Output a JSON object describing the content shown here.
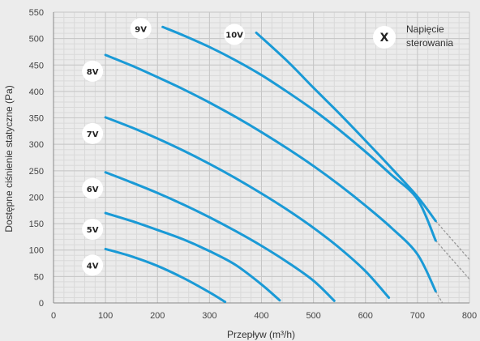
{
  "chart_data": {
    "type": "line",
    "xlabel": "Przepływ (m³/h)",
    "ylabel": "Dostępne ciśnienie statyczne (Pa)",
    "xlim": [
      0,
      800
    ],
    "ylim": [
      0,
      550
    ],
    "x_ticks": [
      "0",
      "100",
      "200",
      "300",
      "400",
      "500",
      "600",
      "700",
      "800"
    ],
    "y_ticks": [
      "0",
      "50",
      "100",
      "150",
      "200",
      "250",
      "300",
      "350",
      "400",
      "450",
      "500",
      "550"
    ],
    "grid": true,
    "legend": {
      "symbol": "X",
      "text_line1": "Napięcie",
      "text_line2": "sterowania",
      "placement": "top-right"
    },
    "series_color": "#1a9ad6",
    "extension_color": "#999999",
    "series": [
      {
        "name": "4V",
        "x": [
          100,
          150,
          200,
          250,
          300,
          330
        ],
        "y": [
          102,
          88,
          70,
          47,
          20,
          2
        ]
      },
      {
        "name": "5V",
        "x": [
          100,
          150,
          200,
          250,
          300,
          350,
          400,
          435
        ],
        "y": [
          170,
          155,
          138,
          120,
          98,
          72,
          35,
          5
        ]
      },
      {
        "name": "6V",
        "x": [
          100,
          150,
          200,
          250,
          300,
          350,
          400,
          450,
          500,
          540
        ],
        "y": [
          247,
          228,
          208,
          186,
          162,
          136,
          108,
          77,
          42,
          4
        ]
      },
      {
        "name": "7V",
        "x": [
          100,
          150,
          200,
          250,
          300,
          350,
          400,
          450,
          500,
          550,
          600,
          645
        ],
        "y": [
          351,
          332,
          311,
          288,
          263,
          236,
          207,
          176,
          142,
          104,
          60,
          10
        ]
      },
      {
        "name": "8V",
        "x": [
          100,
          150,
          200,
          250,
          300,
          350,
          400,
          450,
          500,
          550,
          600,
          650,
          700,
          735
        ],
        "y": [
          469,
          449,
          427,
          404,
          379,
          352,
          323,
          292,
          259,
          223,
          184,
          142,
          92,
          22
        ],
        "extension": {
          "x": [
            735,
            748
          ],
          "y": [
            22,
            0
          ]
        }
      },
      {
        "name": "9V",
        "x": [
          210,
          250,
          300,
          350,
          400,
          450,
          500,
          550,
          600,
          650,
          700,
          735
        ],
        "y": [
          522,
          506,
          484,
          459,
          431,
          399,
          365,
          327,
          286,
          242,
          196,
          118
        ],
        "extension": {
          "x": [
            735,
            800
          ],
          "y": [
            118,
            45
          ]
        }
      },
      {
        "name": "10V",
        "x": [
          390,
          450,
          500,
          550,
          600,
          650,
          700,
          735
        ],
        "y": [
          511,
          457,
          407,
          358,
          307,
          255,
          201,
          155
        ],
        "extension": {
          "x": [
            735,
            800
          ],
          "y": [
            155,
            82
          ]
        }
      }
    ]
  }
}
